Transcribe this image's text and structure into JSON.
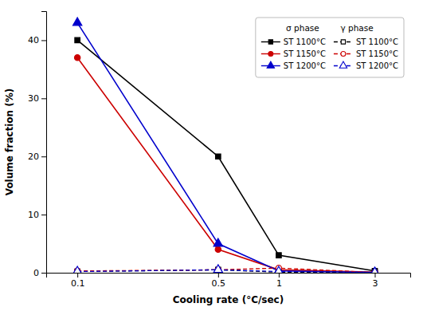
{
  "chart_data": {
    "type": "line",
    "xlabel": "Cooling rate (°C/sec)",
    "ylabel": "Volume fraction (%)",
    "x": [
      0.1,
      0.5,
      1,
      3
    ],
    "series": [
      {
        "name": "ST 1100°C",
        "color": "#000000",
        "marker": "square",
        "line_style": "solid",
        "values": [
          40,
          20,
          3,
          0.3
        ]
      },
      {
        "name": "ST 1150°C",
        "color": "#cc0000",
        "marker": "circle",
        "line_style": "solid",
        "values": [
          37,
          4,
          0.5,
          0.1
        ]
      },
      {
        "name": "ST 1200°C",
        "color": "#0000cc",
        "marker": "triangle",
        "line_style": "solid",
        "values": [
          43,
          5,
          0.3,
          0.05
        ]
      },
      {
        "name": "ST 1100°C",
        "color": "#000000",
        "marker": "square-open",
        "line_style": "dashed",
        "values": [
          0.2,
          0.5,
          0.1,
          0.05
        ]
      },
      {
        "name": "ST 1150°C",
        "color": "#cc0000",
        "marker": "circle-open",
        "line_style": "dashed",
        "values": [
          0.3,
          0.5,
          0.8,
          0.05
        ]
      },
      {
        "name": "ST 1200°C",
        "color": "#0000cc",
        "marker": "triangle-open",
        "line_style": "dashed",
        "values": [
          0.2,
          0.5,
          0.2,
          0.05
        ]
      }
    ],
    "legend_title": "σ phase        γ phase",
    "xlim": [
      0.07,
      4.5
    ],
    "xticks": [
      0.1,
      0.5,
      1,
      3
    ],
    "ylim": [
      0,
      45
    ],
    "yticks": [
      0,
      10,
      20,
      30,
      40
    ],
    "log": "x",
    "grid": false,
    "legend": "upper right"
  }
}
